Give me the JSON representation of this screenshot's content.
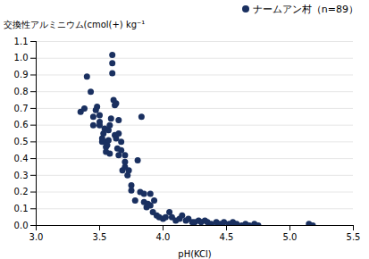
{
  "chart_data": {
    "type": "scatter",
    "xlabel": "pH(KCl)",
    "ylabel": "交換性アルミニウム(cmol(+) kg⁻¹",
    "x": [
      3.35,
      3.38,
      3.4,
      3.43,
      3.45,
      3.45,
      3.47,
      3.48,
      3.5,
      3.5,
      3.5,
      3.52,
      3.52,
      3.53,
      3.54,
      3.55,
      3.55,
      3.55,
      3.56,
      3.57,
      3.57,
      3.58,
      3.58,
      3.59,
      3.6,
      3.6,
      3.6,
      3.61,
      3.62,
      3.62,
      3.63,
      3.63,
      3.64,
      3.65,
      3.65,
      3.65,
      3.67,
      3.67,
      3.68,
      3.7,
      3.7,
      3.7,
      3.72,
      3.73,
      3.75,
      3.75,
      3.78,
      3.8,
      3.82,
      3.83,
      3.85,
      3.85,
      3.87,
      3.88,
      3.9,
      3.9,
      3.92,
      3.93,
      3.95,
      3.97,
      4.0,
      4.02,
      4.05,
      4.07,
      4.1,
      4.13,
      4.15,
      4.18,
      4.2,
      4.23,
      4.25,
      4.28,
      4.3,
      4.33,
      4.35,
      4.38,
      4.42,
      4.45,
      4.48,
      4.52,
      4.55,
      4.58,
      4.62,
      4.65,
      4.68,
      4.72,
      4.75,
      5.15,
      5.18
    ],
    "series": [
      {
        "name": "ナームアン村（n=89）",
        "color": "#1a3060",
        "values": [
          0.68,
          0.7,
          0.89,
          0.8,
          0.6,
          0.65,
          0.69,
          0.71,
          0.6,
          0.62,
          0.66,
          0.5,
          0.52,
          0.55,
          0.58,
          0.44,
          0.47,
          0.5,
          0.48,
          0.51,
          0.57,
          0.43,
          0.6,
          0.64,
          1.02,
          0.97,
          0.91,
          0.75,
          0.54,
          0.72,
          0.73,
          0.52,
          0.46,
          0.42,
          0.55,
          0.63,
          0.45,
          0.5,
          0.33,
          0.35,
          0.38,
          0.42,
          0.3,
          0.33,
          0.21,
          0.24,
          0.15,
          0.39,
          0.2,
          0.65,
          0.14,
          0.19,
          0.11,
          0.13,
          0.19,
          0.12,
          0.08,
          0.15,
          0.06,
          0.05,
          0.04,
          0.05,
          0.08,
          0.05,
          0.03,
          0.04,
          0.06,
          0.03,
          0.04,
          0.02,
          0.02,
          0.03,
          0.02,
          0.03,
          0.02,
          0.01,
          0.02,
          0.01,
          0.02,
          0.01,
          0.02,
          0.01,
          0.0,
          0.01,
          0.0,
          0.01,
          0.0,
          0.01,
          0.0
        ]
      }
    ],
    "xlim": [
      3.0,
      5.5
    ],
    "ylim": [
      0.0,
      1.1
    ],
    "xticks": [
      {
        "value": 3.0,
        "label": "3.0"
      },
      3.5,
      {
        "value": 4.0,
        "label": "4.0"
      },
      4.5,
      {
        "value": 5.0,
        "label": "5.0"
      },
      5.5
    ],
    "yticks": [
      {
        "value": 0.0,
        "label": "0.0"
      },
      0.1,
      0.2,
      0.3,
      0.4,
      0.5,
      0.6,
      0.7,
      0.8,
      0.9,
      {
        "value": 1.0,
        "label": "1.0"
      },
      1.1
    ],
    "grid": "y",
    "legend": "upper right"
  }
}
